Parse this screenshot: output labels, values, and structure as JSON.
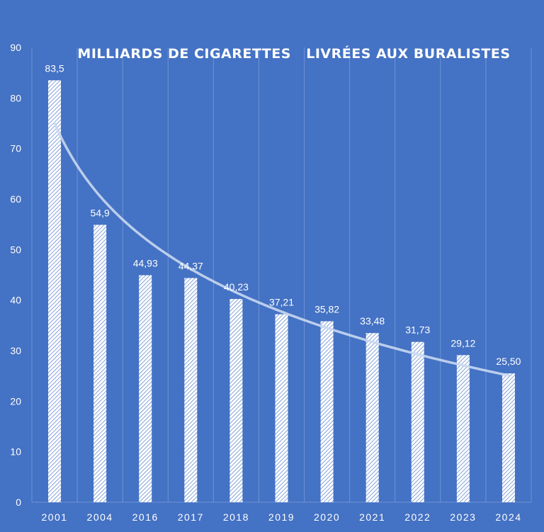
{
  "chart_data": {
    "type": "bar",
    "title": "MILLIARDS DE CIGARETTES   LIVRÉES AUX BURALISTES",
    "categories": [
      "2001",
      "2004",
      "2016",
      "2017",
      "2018",
      "2019",
      "2020",
      "2021",
      "2022",
      "2023",
      "2024"
    ],
    "values": [
      83.5,
      54.9,
      44.93,
      44.37,
      40.23,
      37.21,
      35.82,
      33.48,
      31.73,
      29.12,
      25.5
    ],
    "data_labels": [
      "83,5",
      "54,9",
      "44,93",
      "44,37",
      "40,23",
      "37,21",
      "35,82",
      "33,48",
      "31,73",
      "29,12",
      "25,50"
    ],
    "ylim": [
      0,
      90
    ],
    "yticks": [
      0,
      10,
      20,
      30,
      40,
      50,
      60,
      70,
      80,
      90
    ],
    "trendline": "logarithmic",
    "grid": "vertical",
    "colors": {
      "background": "#4472c4",
      "bar_fill": "#ffffff",
      "bar_hatch": "#4472c4",
      "gridline": "#6e93d6",
      "trendline": "#c9d8f1",
      "text": "#ffffff"
    }
  }
}
